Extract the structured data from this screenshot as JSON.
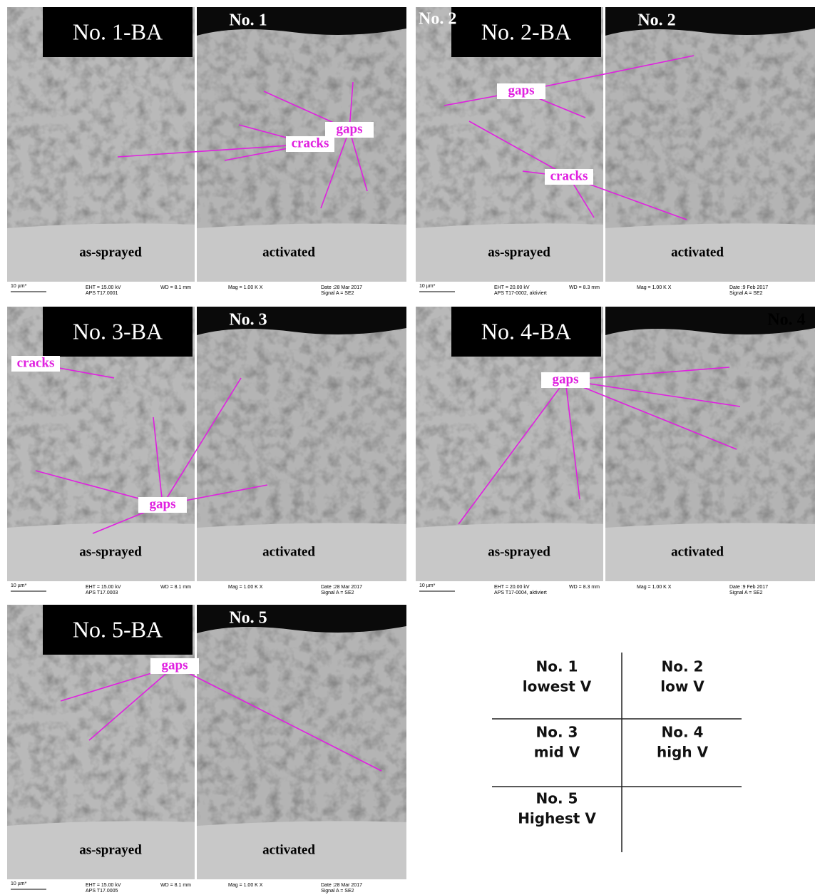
{
  "panels": [
    {
      "left_title": "No. 1-BA",
      "right_title": "No. 1",
      "left_caption": "as-sprayed",
      "right_caption": "activated",
      "annotations": [
        "gaps",
        "cracks"
      ],
      "footer": {
        "scale": "10 µm*",
        "eht": "EHT = 15.00 kV",
        "sample": "APS T17.0001",
        "wd": "WD = 8.1 mm",
        "mag": "Mag = 1.00 K X",
        "date": "Date :28 Mar 2017",
        "signal": "Signal A = SE2"
      }
    },
    {
      "corner_label": "No. 2",
      "left_title": "No. 2-BA",
      "right_title": "No. 2",
      "left_caption": "as-sprayed",
      "right_caption": "activated",
      "annotations": [
        "gaps",
        "cracks"
      ],
      "footer": {
        "scale": "10 µm*",
        "eht": "EHT = 20.00 kV",
        "sample": "APS T17-0002, aktiviert",
        "wd": "WD = 8.3 mm",
        "mag": "Mag = 1.00 K X",
        "date": "Date :9 Feb 2017",
        "signal": "Signal A = SE2"
      }
    },
    {
      "left_title": "No. 3-BA",
      "right_title": "No. 3",
      "left_caption": "as-sprayed",
      "right_caption": "activated",
      "annotations": [
        "cracks",
        "gaps"
      ],
      "footer": {
        "scale": "10 µm*",
        "eht": "EHT = 15.00 kV",
        "sample": "APS T17.0003",
        "wd": "WD = 8.1 mm",
        "mag": "Mag = 1.00 K X",
        "date": "Date :28 Mar 2017",
        "signal": "Signal A = SE2"
      }
    },
    {
      "left_title": "No. 4-BA",
      "right_title": "No. 4",
      "left_caption": "as-sprayed",
      "right_caption": "activated",
      "annotations": [
        "gaps"
      ],
      "footer": {
        "scale": "10 µm*",
        "eht": "EHT = 20.00 kV",
        "sample": "APS T17-0004, aktiviert",
        "wd": "WD = 8.3 mm",
        "mag": "Mag = 1.00 K X",
        "date": "Date :9 Feb 2017",
        "signal": "Signal A = SE2"
      }
    },
    {
      "left_title": "No. 5-BA",
      "right_title": "No. 5",
      "left_caption": "as-sprayed",
      "right_caption": "activated",
      "annotations": [
        "gaps"
      ],
      "footer": {
        "scale": "10 µm*",
        "eht": "EHT = 15.00 kV",
        "sample": "APS T17.0005",
        "wd": "WD = 8.1 mm",
        "mag": "Mag = 1.00 K X",
        "date": "Date :28 Mar 2017",
        "signal": "Signal A = SE2"
      }
    }
  ],
  "table": {
    "rows": [
      [
        {
          "id": "No. 1",
          "label": "lowest V"
        },
        {
          "id": "No. 2",
          "label": "low V"
        }
      ],
      [
        {
          "id": "No. 3",
          "label": "mid V"
        },
        {
          "id": "No. 4",
          "label": "high V"
        }
      ],
      [
        {
          "id": "No. 5",
          "label": "Highest V"
        }
      ]
    ]
  }
}
